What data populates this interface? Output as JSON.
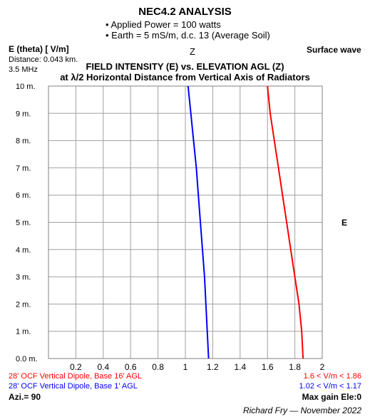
{
  "header": {
    "title": "NEC4.2 ANALYSIS",
    "bullets": [
      "Applied Power = 100 watts",
      "Earth = 5 mS/m, d.c. 13 (Average Soil)"
    ]
  },
  "left_info": {
    "units": "E (theta) [ V/m]",
    "distance": "Distance: 0.043 km.",
    "frequency": "3.5 MHz"
  },
  "z_label": "Z",
  "e_label": "E",
  "wave_label": "Surface wave",
  "chart_title_1": "FIELD INTENSITY (E) vs. ELEVATION AGL (Z)",
  "chart_title_2": "at λ/2 Horizontal Distance from Vertical Axis of Radiators",
  "footer": {
    "series_red_label": "28' OCF Vertical Dipole, Base 16' AGL",
    "series_blue_label": "28' OCF Vertical Dipole, Base 1' AGL",
    "red_range": "1.6 <  V/m < 1.86",
    "blue_range": "1.02 <  V/m < 1.17",
    "azimuth": "Azi.= 90",
    "max_gain": "Max gain Ele:0",
    "credit": "Richard Fry — November 2022"
  },
  "colors": {
    "red": "#ff0000",
    "blue": "#0000ff",
    "grid": "#a0a0a0"
  },
  "chart_data": {
    "type": "line",
    "x_ticks": [
      "0.2",
      "0.4",
      "0.6",
      "0.8",
      "1",
      "1.2",
      "1.4",
      "1.6",
      "1.8",
      "2"
    ],
    "y_ticks": [
      "0.0 m.",
      "1 m.",
      "2 m.",
      "3 m.",
      "4 m.",
      "5 m.",
      "6 m.",
      "7 m.",
      "8 m.",
      "9 m.",
      "10 m."
    ],
    "xlim": [
      0,
      2
    ],
    "ylim": [
      0,
      10
    ],
    "series": [
      {
        "color": "#ff0000",
        "points": [
          [
            1.86,
            0
          ],
          [
            1.85,
            1
          ],
          [
            1.83,
            2
          ],
          [
            1.8,
            3
          ],
          [
            1.77,
            4
          ],
          [
            1.74,
            5
          ],
          [
            1.71,
            6
          ],
          [
            1.68,
            7
          ],
          [
            1.65,
            8
          ],
          [
            1.62,
            9
          ],
          [
            1.6,
            10
          ]
        ]
      },
      {
        "color": "#0000ff",
        "points": [
          [
            1.17,
            0
          ],
          [
            1.16,
            1
          ],
          [
            1.15,
            2
          ],
          [
            1.14,
            3
          ],
          [
            1.125,
            4
          ],
          [
            1.11,
            5
          ],
          [
            1.095,
            6
          ],
          [
            1.08,
            7
          ],
          [
            1.06,
            8
          ],
          [
            1.04,
            9
          ],
          [
            1.02,
            10
          ]
        ]
      }
    ]
  }
}
